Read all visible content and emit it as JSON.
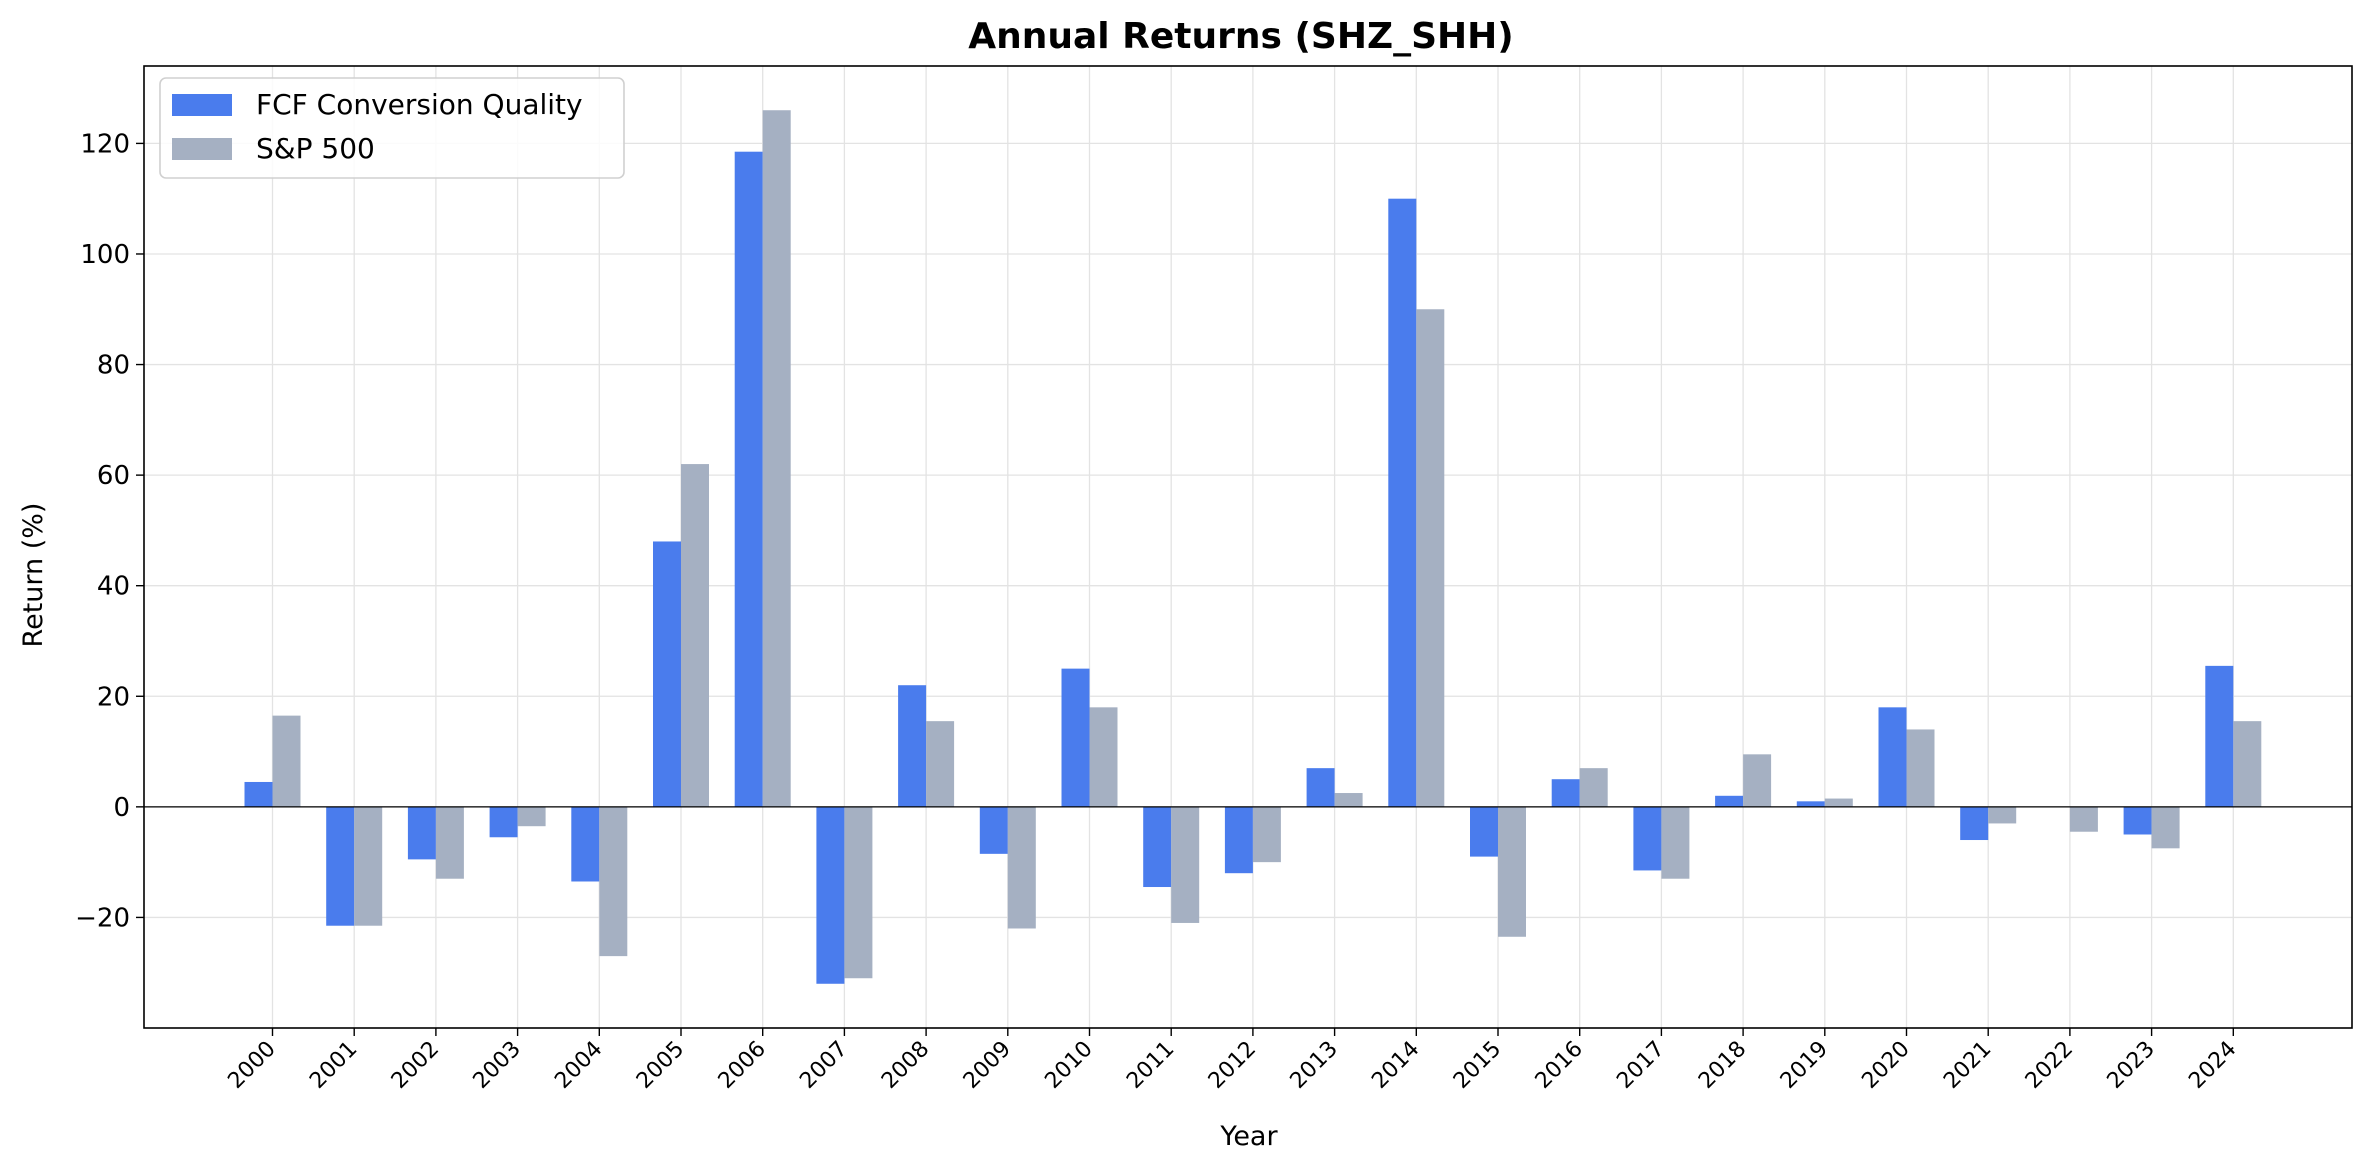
{
  "chart_data": {
    "type": "bar",
    "title": "Annual Returns (SHZ_SHH)",
    "xlabel": "Year",
    "ylabel": "Return (%)",
    "ylim": [
      -40,
      134
    ],
    "yticks": [
      -20,
      0,
      20,
      40,
      60,
      80,
      100,
      120
    ],
    "ytick_labels": [
      "−20",
      "0",
      "20",
      "40",
      "60",
      "80",
      "100",
      "120"
    ],
    "grid": true,
    "legend_position": "top-left",
    "categories": [
      "2000",
      "2001",
      "2002",
      "2003",
      "2004",
      "2005",
      "2006",
      "2007",
      "2008",
      "2009",
      "2010",
      "2011",
      "2012",
      "2013",
      "2014",
      "2015",
      "2016",
      "2017",
      "2018",
      "2019",
      "2020",
      "2021",
      "2022",
      "2023",
      "2024"
    ],
    "series": [
      {
        "name": "FCF Conversion Quality",
        "color": "#4a7ced",
        "values": [
          4.5,
          -21.5,
          -9.5,
          -5.5,
          -13.5,
          48,
          118.5,
          -32,
          22,
          -8.5,
          25,
          -14.5,
          -12,
          7,
          110,
          -9,
          5,
          -11.5,
          2,
          1,
          18,
          -6,
          0,
          -5,
          25.5
        ]
      },
      {
        "name": "S&P 500",
        "color": "#a5b0c2",
        "values": [
          16.5,
          -21.5,
          -13,
          -3.5,
          -27,
          62,
          126,
          -31,
          15.5,
          -22,
          18,
          -21,
          -10,
          2.5,
          90,
          -23.5,
          7,
          -13,
          9.5,
          1.5,
          14,
          -3,
          -4.5,
          -7.5,
          15.5
        ]
      }
    ]
  }
}
